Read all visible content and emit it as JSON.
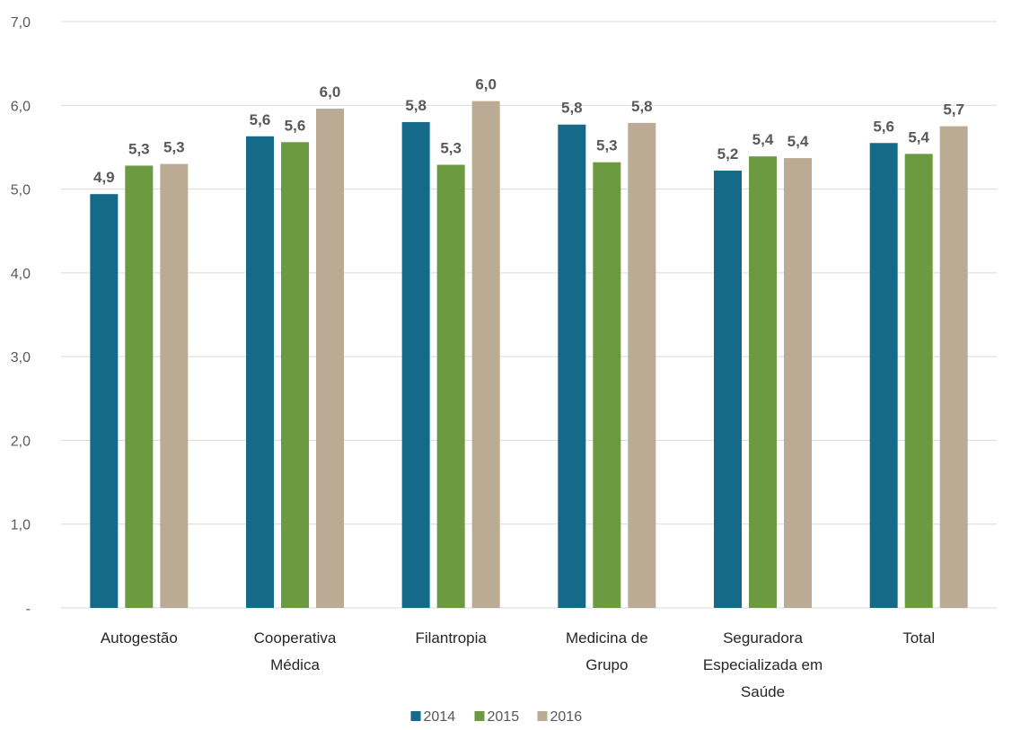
{
  "chart_data": {
    "type": "bar",
    "categories": [
      [
        "Autogestão"
      ],
      [
        "Cooperativa",
        "Médica"
      ],
      [
        "Filantropia"
      ],
      [
        "Medicina de",
        "Grupo"
      ],
      [
        "Seguradora",
        "Especializada em",
        "Saúde"
      ],
      [
        "Total"
      ]
    ],
    "series": [
      {
        "name": "2014",
        "color": "#156a8a",
        "values": [
          4.94,
          5.63,
          5.8,
          5.77,
          5.22,
          5.55
        ],
        "labels": [
          "4,9",
          "5,6",
          "5,8",
          "5,8",
          "5,2",
          "5,6"
        ]
      },
      {
        "name": "2015",
        "color": "#6b9a40",
        "values": [
          5.28,
          5.56,
          5.29,
          5.32,
          5.39,
          5.42
        ],
        "labels": [
          "5,3",
          "5,6",
          "5,3",
          "5,3",
          "5,4",
          "5,4"
        ]
      },
      {
        "name": "2016",
        "color": "#bbab95",
        "values": [
          5.3,
          5.96,
          6.05,
          5.79,
          5.37,
          5.75
        ],
        "labels": [
          "5,3",
          "6,0",
          "6,0",
          "5,8",
          "5,4",
          "5,7"
        ]
      }
    ],
    "yticks": [
      {
        "value": 0,
        "label": "-"
      },
      {
        "value": 1,
        "label": "1,0"
      },
      {
        "value": 2,
        "label": "2,0"
      },
      {
        "value": 3,
        "label": "3,0"
      },
      {
        "value": 4,
        "label": "4,0"
      },
      {
        "value": 5,
        "label": "5,0"
      },
      {
        "value": 6,
        "label": "6,0"
      },
      {
        "value": 7,
        "label": "7,0"
      }
    ],
    "ylim": [
      0,
      7
    ],
    "title": "",
    "xlabel": "",
    "ylabel": "",
    "grid": true,
    "gridColor": "#d9d9d9",
    "legend_position": "bottom"
  }
}
